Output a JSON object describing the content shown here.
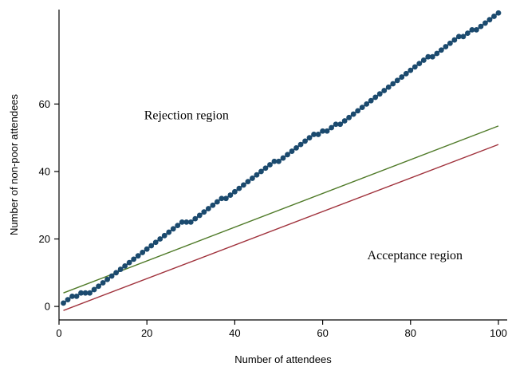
{
  "chart_data": {
    "type": "scatter",
    "xlabel": "Number of attendees",
    "ylabel": "Number of non-poor attendees",
    "xlim": [
      0,
      102
    ],
    "ylim": [
      -4,
      88
    ],
    "x_ticks": [
      0,
      20,
      40,
      60,
      80,
      100
    ],
    "y_ticks": [
      0,
      20,
      40,
      60
    ],
    "grid": false,
    "annotations": [
      {
        "name": "rejection",
        "text": "Rejection region",
        "x": 29,
        "y": 55.5
      },
      {
        "name": "acceptance",
        "text": "Acceptance region",
        "x": 81,
        "y": 14
      }
    ],
    "lines": [
      {
        "name": "upper-line",
        "color": "#4f7a28",
        "x": [
          1,
          100
        ],
        "y": [
          4,
          53.5
        ]
      },
      {
        "name": "lower-line",
        "color": "#a0323c",
        "x": [
          1,
          100
        ],
        "y": [
          -1.2,
          48
        ]
      }
    ],
    "series": [
      {
        "color": "#1b4a6e",
        "x": [
          1,
          2,
          3,
          4,
          5,
          6,
          7,
          8,
          9,
          10,
          11,
          12,
          13,
          14,
          15,
          16,
          17,
          18,
          19,
          20,
          21,
          22,
          23,
          24,
          25,
          26,
          27,
          28,
          29,
          30,
          31,
          32,
          33,
          34,
          35,
          36,
          37,
          38,
          39,
          40,
          41,
          42,
          43,
          44,
          45,
          46,
          47,
          48,
          49,
          50,
          51,
          52,
          53,
          54,
          55,
          56,
          57,
          58,
          59,
          60,
          61,
          62,
          63,
          64,
          65,
          66,
          67,
          68,
          69,
          70,
          71,
          72,
          73,
          74,
          75,
          76,
          77,
          78,
          79,
          80,
          81,
          82,
          83,
          84,
          85,
          86,
          87,
          88,
          89,
          90,
          91,
          92,
          93,
          94,
          95,
          96,
          97,
          98,
          99,
          100
        ],
        "y": [
          1,
          2,
          3,
          3,
          4,
          4,
          4,
          5,
          6,
          7,
          8,
          9,
          10,
          11,
          12,
          13,
          14,
          15,
          16,
          17,
          18,
          19,
          20,
          21,
          22,
          23,
          24,
          25,
          25,
          25,
          26,
          27,
          28,
          29,
          30,
          31,
          32,
          32,
          33,
          34,
          35,
          36,
          37,
          38,
          39,
          40,
          41,
          42,
          43,
          43,
          44,
          45,
          46,
          47,
          48,
          49,
          50,
          51,
          51,
          52,
          52,
          53,
          54,
          54,
          55,
          56,
          57,
          58,
          59,
          60,
          61,
          62,
          63,
          64,
          65,
          66,
          67,
          68,
          69,
          70,
          71,
          72,
          73,
          74,
          74,
          75,
          76,
          77,
          78,
          79,
          80,
          80,
          81,
          82,
          82,
          83,
          84,
          85,
          86,
          87
        ]
      }
    ]
  }
}
